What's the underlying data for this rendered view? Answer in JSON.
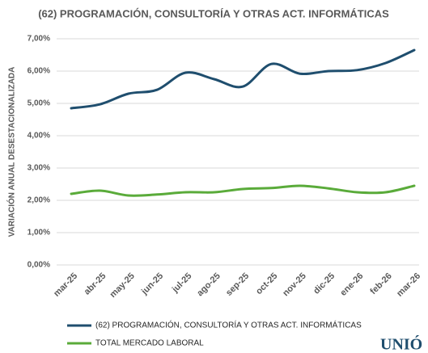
{
  "chart_data": {
    "type": "line",
    "title": "(62) PROGRAMACIÓN,  CONSULTORÍA Y OTRAS ACT. INFORMÁTICAS",
    "y_label": "VARIACIÓN ANUAL DESESTACIONALIZADA",
    "categories": [
      "mar-25",
      "abr-25",
      "may-25",
      "jun-25",
      "jul-25",
      "ago-25",
      "sep-25",
      "oct-25",
      "nov-25",
      "dic-25",
      "ene-26",
      "feb-26",
      "mar-26"
    ],
    "series": [
      {
        "name": "(62) PROGRAMACIÓN, CONSULTORÍA Y OTRAS ACT. INFORMÁTICAS",
        "color": "#1f4e6e",
        "values": [
          4.85,
          4.97,
          5.3,
          5.42,
          5.95,
          5.75,
          5.52,
          6.22,
          5.92,
          6.0,
          6.03,
          6.25,
          6.65
        ]
      },
      {
        "name": "TOTAL MERCADO LABORAL",
        "color": "#5aab3a",
        "values": [
          2.2,
          2.3,
          2.15,
          2.18,
          2.25,
          2.25,
          2.35,
          2.38,
          2.45,
          2.37,
          2.25,
          2.25,
          2.45
        ]
      }
    ],
    "ylim": [
      0,
      7
    ],
    "yticks": [
      {
        "value": 0,
        "label": "0,00%"
      },
      {
        "value": 1,
        "label": "1,00%"
      },
      {
        "value": 2,
        "label": "2,00%"
      },
      {
        "value": 3,
        "label": "3,00%"
      },
      {
        "value": 4,
        "label": "4,00%"
      },
      {
        "value": 5,
        "label": "5,00%"
      },
      {
        "value": 6,
        "label": "6,00%"
      },
      {
        "value": 7,
        "label": "7,00%"
      }
    ],
    "grid": true,
    "logo": "UNIÓ"
  }
}
